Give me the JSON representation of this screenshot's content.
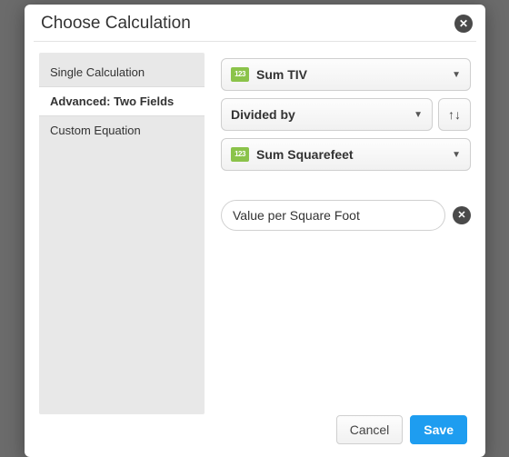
{
  "dialog": {
    "title": "Choose Calculation"
  },
  "sidebar": {
    "items": [
      {
        "label": "Single Calculation"
      },
      {
        "label": "Advanced: Two Fields"
      },
      {
        "label": "Custom Equation"
      }
    ]
  },
  "main": {
    "field1": {
      "label": "Sum TIV",
      "icon": "123"
    },
    "operator": {
      "label": "Divided by"
    },
    "field2": {
      "label": "Sum Squarefeet",
      "icon": "123"
    },
    "value_input": {
      "value": "Value per Square Foot"
    }
  },
  "footer": {
    "cancel": "Cancel",
    "save": "Save"
  },
  "colors": {
    "accent": "#1e9df0",
    "field_icon": "#8bc34a"
  }
}
